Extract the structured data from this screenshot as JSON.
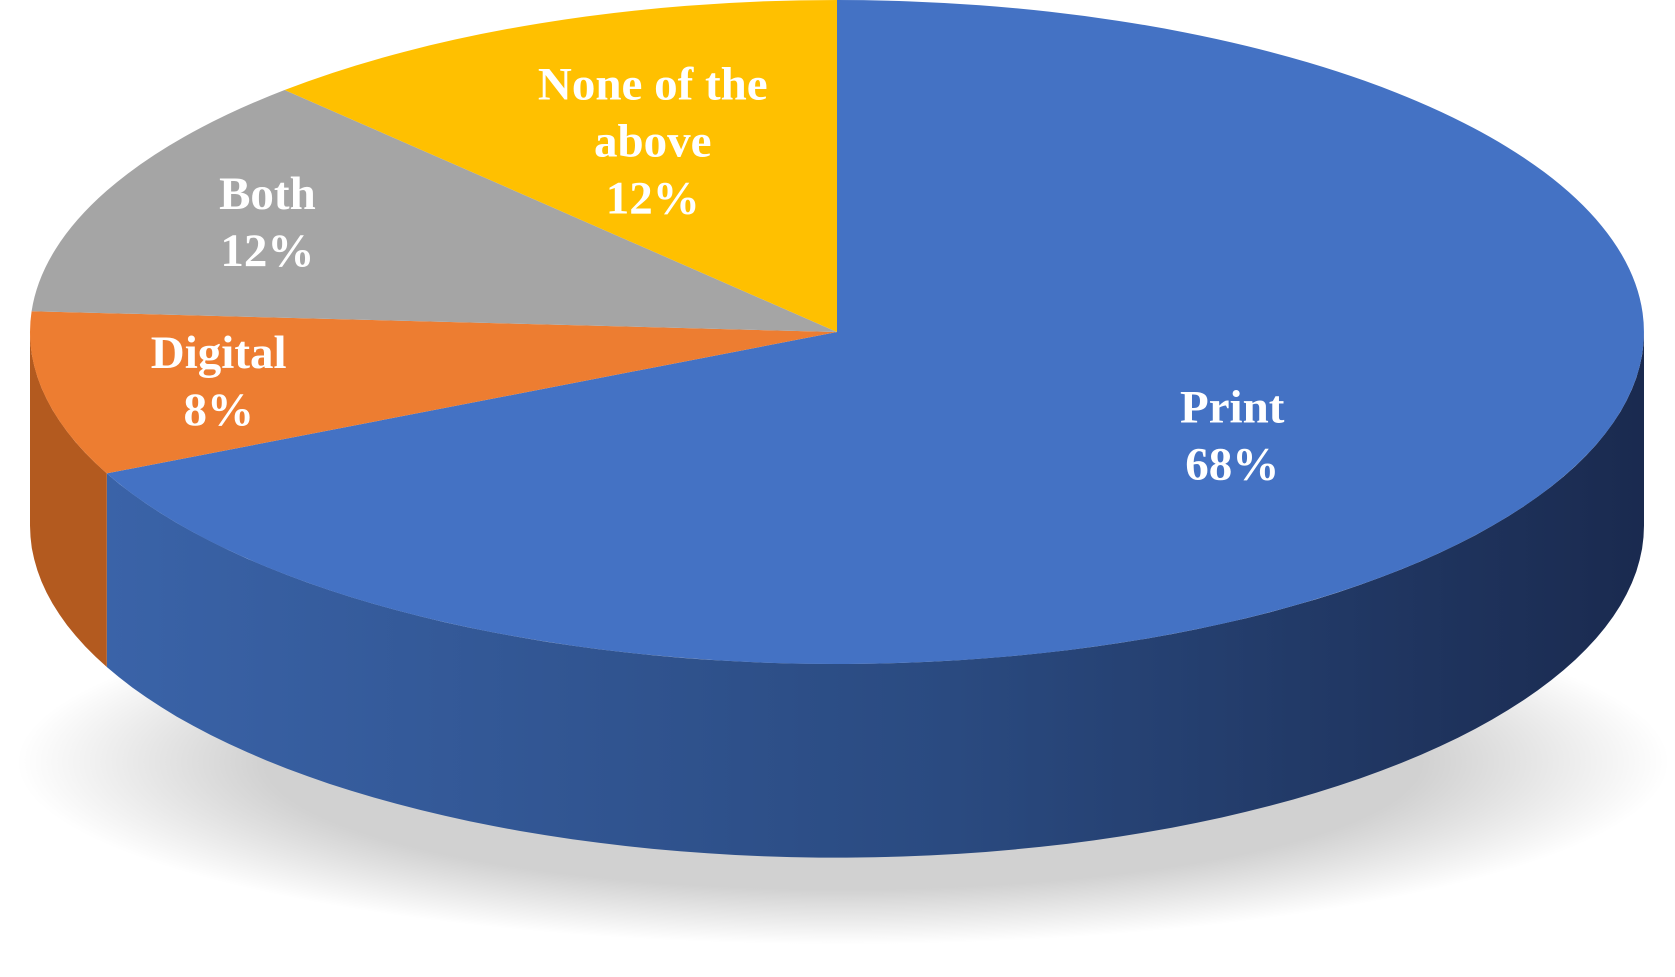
{
  "chart_data": {
    "type": "pie",
    "style": "3d",
    "title": "",
    "slices": [
      {
        "label": "Print",
        "value": 68,
        "value_label": "68%",
        "color": "#4472C4",
        "side_color": "#2F4E8C"
      },
      {
        "label": "Digital",
        "value": 8,
        "value_label": "8%",
        "color": "#ED7D31",
        "side_color": "#B35A1F"
      },
      {
        "label": "Both",
        "value": 12,
        "value_label": "12%",
        "color": "#A5A5A5",
        "side_color": "#7A7A7A"
      },
      {
        "label": "None of the above",
        "value": 12,
        "value_label": "12%",
        "color": "#FFC000",
        "side_color": "#C79400"
      }
    ],
    "start_angle_deg": 90,
    "direction": "clockwise",
    "legend": "none",
    "label_color": "#FFFFFF"
  }
}
